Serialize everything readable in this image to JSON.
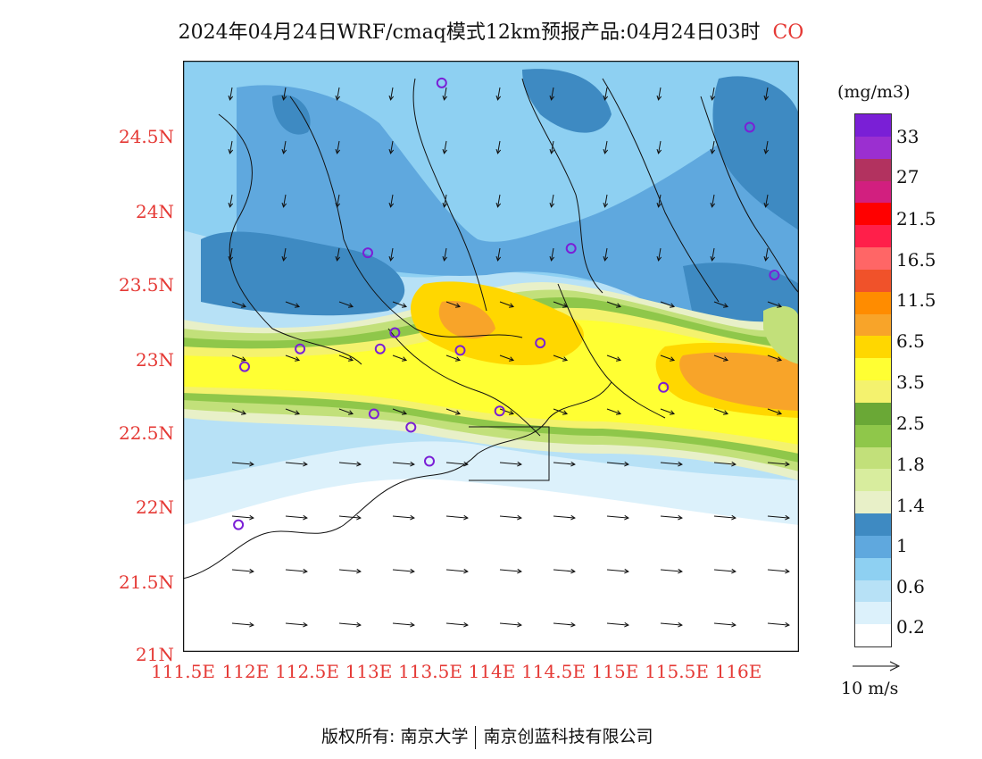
{
  "title": {
    "main": "2024年04月24日WRF/cmaq模式12km预报产品:04月24日03时",
    "species": "CO"
  },
  "axes": {
    "lat_ticks": [
      "24.5N",
      "24N",
      "23.5N",
      "23N",
      "22.5N",
      "22N",
      "21.5N",
      "21N"
    ],
    "lon_ticks": [
      "111.5E",
      "112E",
      "112.5E",
      "113E",
      "113.5E",
      "114E",
      "114.5E",
      "115E",
      "115.5E",
      "116E"
    ]
  },
  "legend": {
    "unit": "(mg/m3)",
    "labels": [
      "33",
      "27",
      "21.5",
      "16.5",
      "11.5",
      "6.5",
      "3.5",
      "2.5",
      "1.8",
      "1.4",
      "1",
      "0.6",
      "0.2"
    ],
    "colors": [
      "#7a1fd6",
      "#9b2fd0",
      "#b2325f",
      "#d21f7f",
      "#ff0000",
      "#ff1f4a",
      "#ff6666",
      "#f0522a",
      "#ff8c00",
      "#f8a429",
      "#ffd700",
      "#ffff33",
      "#f4f26e",
      "#6aa836",
      "#8fc74a",
      "#c2e07a",
      "#d8ed9e",
      "#e8f0c8",
      "#3e8ac2",
      "#5fa8de",
      "#8ed0f2",
      "#b7e1f6",
      "#dcf1fb",
      "#ffffff"
    ],
    "wind_ref": "10 m/s"
  },
  "footer": {
    "left": "版权所有: 南京大学",
    "right": "南京创蓝科技有限公司"
  },
  "stations": [
    {
      "name": "st1",
      "lon": 113.6,
      "lat": 24.85
    },
    {
      "name": "st2",
      "lon": 116.1,
      "lat": 24.55
    },
    {
      "name": "st3",
      "lon": 113.0,
      "lat": 23.7
    },
    {
      "name": "st4",
      "lon": 114.65,
      "lat": 23.73
    },
    {
      "name": "st5",
      "lon": 116.3,
      "lat": 23.55
    },
    {
      "name": "st6",
      "lon": 112.0,
      "lat": 22.93
    },
    {
      "name": "st7",
      "lon": 112.45,
      "lat": 23.05
    },
    {
      "name": "st8",
      "lon": 113.1,
      "lat": 23.05
    },
    {
      "name": "st9",
      "lon": 113.22,
      "lat": 23.16
    },
    {
      "name": "st10",
      "lon": 113.75,
      "lat": 23.04
    },
    {
      "name": "st11",
      "lon": 114.4,
      "lat": 23.09
    },
    {
      "name": "st12",
      "lon": 115.4,
      "lat": 22.79
    },
    {
      "name": "st13",
      "lon": 113.05,
      "lat": 22.61
    },
    {
      "name": "st14",
      "lon": 113.35,
      "lat": 22.52
    },
    {
      "name": "st15",
      "lon": 113.5,
      "lat": 22.29
    },
    {
      "name": "st16",
      "lon": 114.07,
      "lat": 22.63
    },
    {
      "name": "st17",
      "lon": 111.95,
      "lat": 21.86
    }
  ]
}
